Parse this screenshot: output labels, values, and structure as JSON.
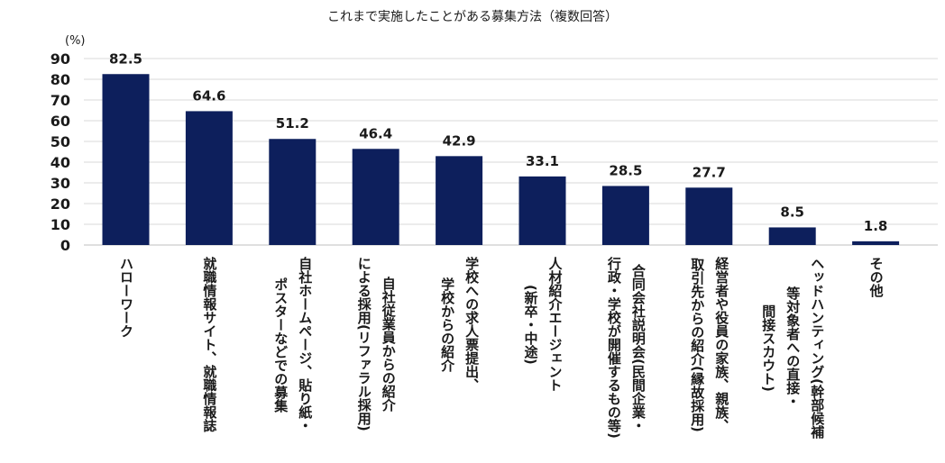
{
  "chart_data": {
    "type": "bar",
    "title": "これまで実施したことがある募集方法（複数回答）",
    "ylabel": "(%)",
    "ylim": [
      0,
      90
    ],
    "yticks": [
      0,
      10,
      20,
      30,
      40,
      50,
      60,
      70,
      80,
      90
    ],
    "grid": true,
    "bar_color": "#0d1f5c",
    "categories": [
      [
        "ハローワーク"
      ],
      [
        "就職情報サイト、就職情報誌"
      ],
      [
        "自社ホームページ、貼り紙・",
        "ポスターなどでの募集"
      ],
      [
        "自社従業員からの紹介",
        "による採用(リファラル採用)"
      ],
      [
        "学校への求人票提出、",
        "学校からの紹介"
      ],
      [
        "人材紹介エージェント",
        "(新卒・中途)"
      ],
      [
        "合同会社説明会(民間企業・",
        "行政・学校が開催するもの等)"
      ],
      [
        "経営者や役員の家族、親族、",
        "取引先からの紹介(縁故採用)"
      ],
      [
        "ヘッドハンティング(幹部候補",
        "等対象者への直接・",
        "間接スカウト)"
      ],
      [
        "その他"
      ]
    ],
    "values": [
      82.5,
      64.6,
      51.2,
      46.4,
      42.9,
      33.1,
      28.5,
      27.7,
      8.5,
      1.8
    ]
  }
}
